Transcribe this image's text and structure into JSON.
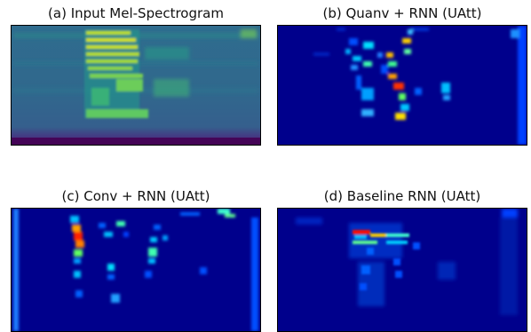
{
  "panels": [
    {
      "title": "(a) Input Mel-Spectrogram",
      "colormap": "viridis"
    },
    {
      "title": "(b) Quanv + RNN (UAtt)",
      "colormap": "jet"
    },
    {
      "title": "(c) Conv + RNN (UAtt)",
      "colormap": "jet"
    },
    {
      "title": "(d) Baseline RNN (UAtt)",
      "colormap": "jet"
    }
  ]
}
